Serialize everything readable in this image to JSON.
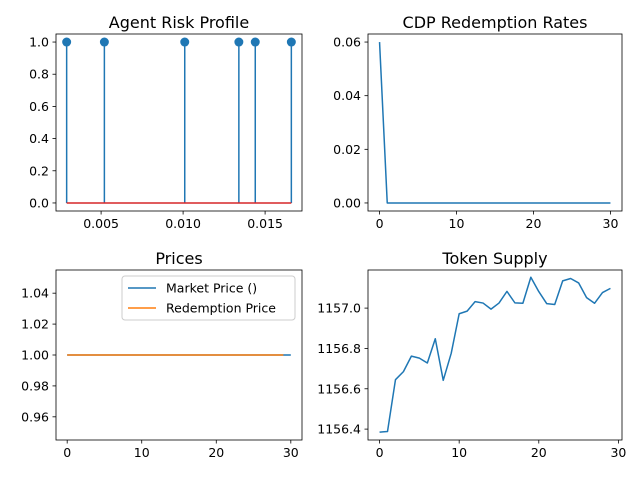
{
  "chart_data": [
    {
      "type": "stem",
      "title": "Agent Risk Profile",
      "x": [
        0.0029,
        0.0052,
        0.0101,
        0.0134,
        0.0144,
        0.0166
      ],
      "y": [
        1.0,
        1.0,
        1.0,
        1.0,
        1.0,
        1.0
      ],
      "baseline": 0,
      "xlim": [
        0.00225,
        0.01725
      ],
      "ylim": [
        -0.05,
        1.05
      ],
      "xticks": [
        0.005,
        0.01,
        0.015
      ],
      "xtick_labels": [
        "0.005",
        "0.010",
        "0.015"
      ],
      "yticks": [
        0.0,
        0.2,
        0.4,
        0.6,
        0.8,
        1.0
      ],
      "ytick_labels": [
        "0.0",
        "0.2",
        "0.4",
        "0.6",
        "0.8",
        "1.0"
      ],
      "colors": {
        "stem": "#1f77b4",
        "baseline": "#d62728"
      }
    },
    {
      "type": "line",
      "title": "CDP Redemption Rates",
      "x": [
        0,
        1,
        30
      ],
      "y": [
        0.06,
        0.0,
        0.0
      ],
      "xlim": [
        -1.5,
        31.5
      ],
      "ylim": [
        -0.003,
        0.063
      ],
      "xticks": [
        0,
        10,
        20,
        30
      ],
      "xtick_labels": [
        "0",
        "10",
        "20",
        "30"
      ],
      "yticks": [
        0.0,
        0.02,
        0.04,
        0.06
      ],
      "ytick_labels": [
        "0.00",
        "0.02",
        "0.04",
        "0.06"
      ],
      "colors": {
        "line": "#1f77b4"
      }
    },
    {
      "type": "line",
      "title": "Prices",
      "xlim": [
        -1.5,
        31.5
      ],
      "ylim": [
        0.945,
        1.055
      ],
      "xticks": [
        0,
        10,
        20,
        30
      ],
      "xtick_labels": [
        "0",
        "10",
        "20",
        "30"
      ],
      "yticks": [
        0.96,
        0.98,
        1.0,
        1.02,
        1.04
      ],
      "ytick_labels": [
        "0.96",
        "0.98",
        "1.00",
        "1.02",
        "1.04"
      ],
      "series": [
        {
          "name": "Market Price ()",
          "x": [
            0,
            30
          ],
          "y": [
            1.0,
            1.0
          ],
          "color": "#1f77b4"
        },
        {
          "name": "Redemption Price",
          "x": [
            0,
            29
          ],
          "y": [
            1.0,
            1.0
          ],
          "color": "#ff7f0e"
        }
      ],
      "legend": "top-right"
    },
    {
      "type": "line",
      "title": "Token Supply",
      "x": [
        0,
        1,
        2,
        3,
        4,
        5,
        6,
        7,
        8,
        9,
        10,
        11,
        12,
        13,
        14,
        15,
        16,
        17,
        18,
        19,
        20,
        21,
        22,
        23,
        24,
        25,
        26,
        27,
        28,
        29
      ],
      "y": [
        1156.385,
        1156.388,
        1156.645,
        1156.685,
        1156.762,
        1156.752,
        1156.728,
        1156.848,
        1156.642,
        1156.776,
        1156.972,
        1156.985,
        1157.032,
        1157.025,
        1156.995,
        1157.025,
        1157.083,
        1157.026,
        1157.024,
        1157.153,
        1157.082,
        1157.022,
        1157.018,
        1157.135,
        1157.147,
        1157.125,
        1157.052,
        1157.024,
        1157.077,
        1157.098
      ],
      "xlim": [
        -1.45,
        30.45
      ],
      "ylim": [
        1156.346,
        1157.189
      ],
      "xticks": [
        0,
        10,
        20,
        30
      ],
      "xtick_labels": [
        "0",
        "10",
        "20",
        "30"
      ],
      "yticks": [
        1156.4,
        1156.6,
        1156.8,
        1157.0
      ],
      "ytick_labels": [
        "1156.4",
        "1156.6",
        "1156.8",
        "1157.0"
      ],
      "colors": {
        "line": "#1f77b4"
      }
    }
  ]
}
